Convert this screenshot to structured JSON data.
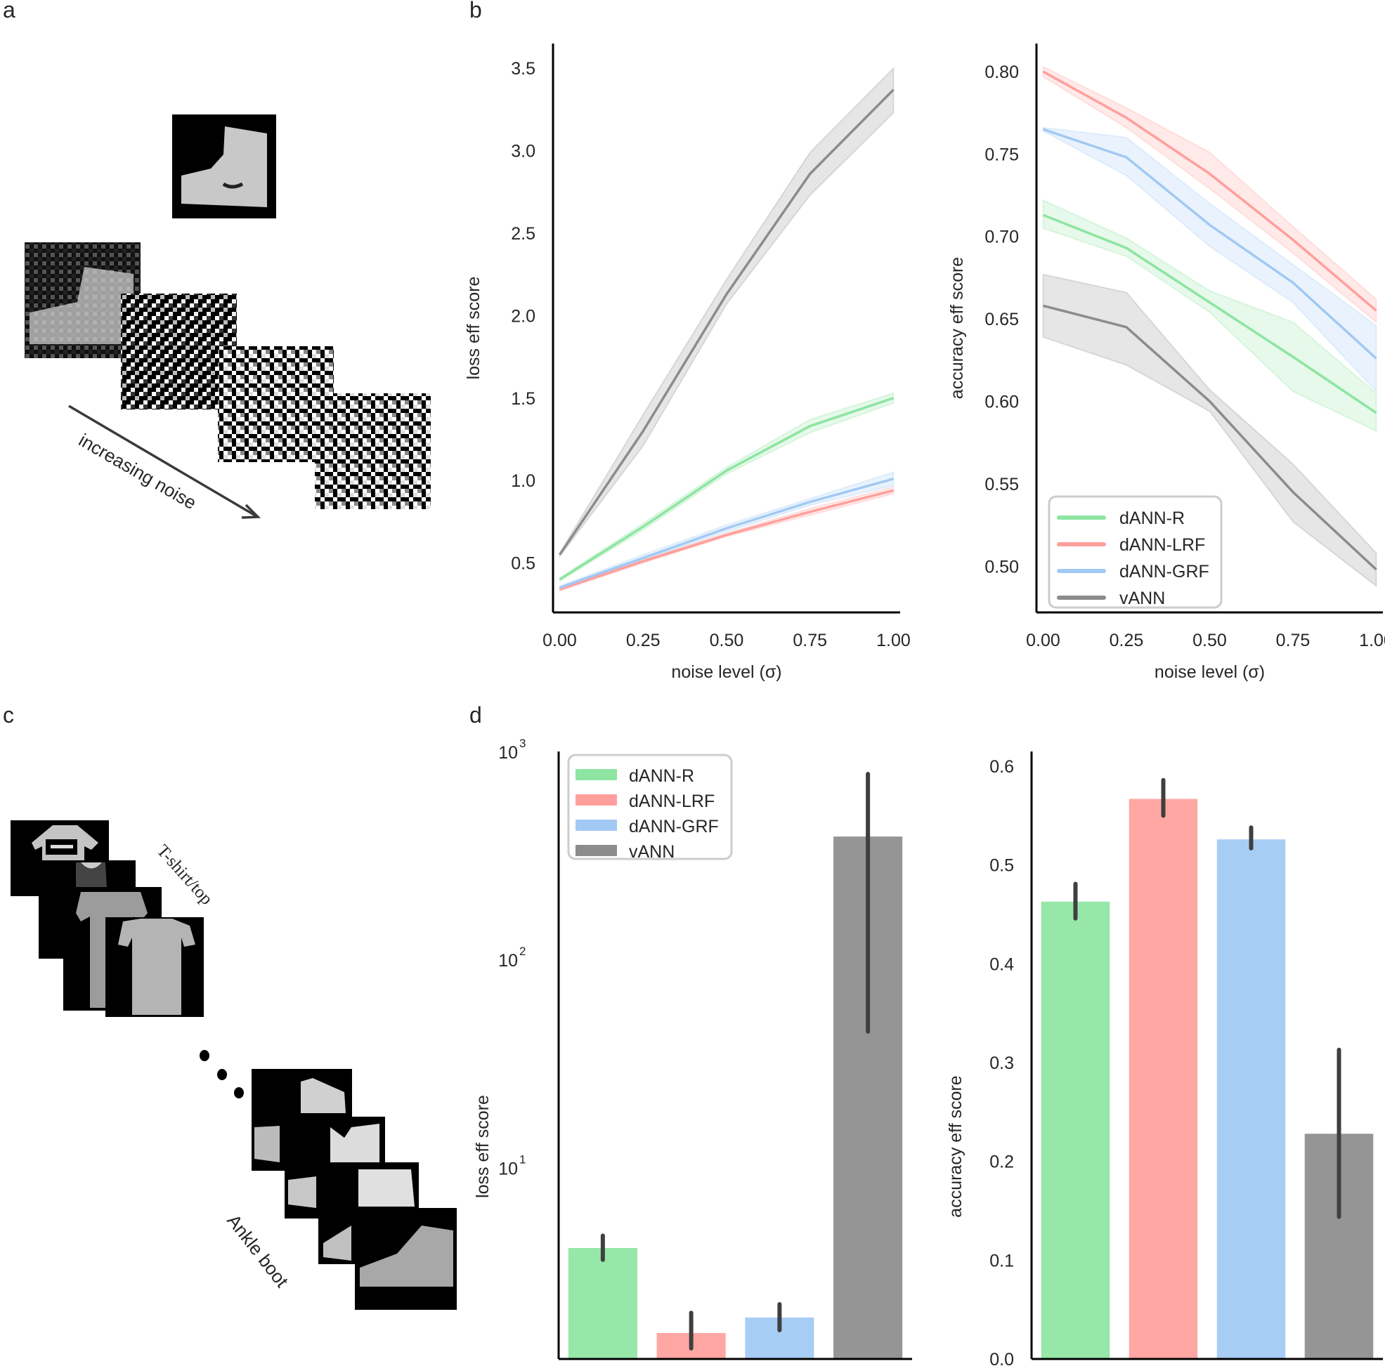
{
  "panels": {
    "a": {
      "letter": "a",
      "arrow_label": "increasing noise",
      "description": "Fashion-MNIST ankle boot image with increasing levels of additive noise"
    },
    "b": {
      "letter": "b"
    },
    "c": {
      "letter": "c",
      "first_class_label": "T-shirt/top",
      "last_class_label": "Ankle boot",
      "description": "Fashion-MNIST class examples from T-shirt/top to Ankle boot"
    },
    "d": {
      "letter": "d"
    }
  },
  "colors": {
    "dANN-R": "#8de5a1",
    "dANN-LRF": "#ff9f9b",
    "dANN-GRF": "#a1c9f4",
    "vANN": "#8c8c8c",
    "errorbar": "#3f3f3f",
    "axis": "#000000"
  },
  "legend": [
    "dANN-R",
    "dANN-LRF",
    "dANN-GRF",
    "vANN"
  ],
  "chart_data": [
    {
      "id": "loss-vs-noise",
      "type": "line",
      "title": "",
      "xlabel": "noise level (σ)",
      "ylabel": "loss eff score",
      "x": [
        0.0,
        0.25,
        0.5,
        0.75,
        1.0
      ],
      "xticks": [
        "0.00",
        "0.25",
        "0.50",
        "0.75",
        "1.00"
      ],
      "yticks": [
        "0.5",
        "1.0",
        "1.5",
        "2.0",
        "2.5",
        "3.0",
        "3.5"
      ],
      "ytick_values": [
        0.5,
        1.0,
        1.5,
        2.0,
        2.5,
        3.0,
        3.5
      ],
      "xlim": [
        -0.02,
        1.02
      ],
      "ylim": [
        0.2,
        3.65
      ],
      "grid": false,
      "legend": "none",
      "series": [
        {
          "name": "dANN-R",
          "values": [
            0.4,
            0.72,
            1.06,
            1.33,
            1.5
          ],
          "ci_low": [
            0.39,
            0.7,
            1.04,
            1.29,
            1.47
          ],
          "ci_high": [
            0.41,
            0.74,
            1.08,
            1.37,
            1.53
          ]
        },
        {
          "name": "dANN-LRF",
          "values": [
            0.34,
            0.51,
            0.67,
            0.81,
            0.94
          ],
          "ci_low": [
            0.33,
            0.5,
            0.66,
            0.79,
            0.92
          ],
          "ci_high": [
            0.35,
            0.52,
            0.68,
            0.83,
            0.96
          ]
        },
        {
          "name": "dANN-GRF",
          "values": [
            0.35,
            0.53,
            0.71,
            0.87,
            1.01
          ],
          "ci_low": [
            0.34,
            0.52,
            0.69,
            0.85,
            0.97
          ],
          "ci_high": [
            0.36,
            0.55,
            0.73,
            0.89,
            1.05
          ]
        },
        {
          "name": "vANN",
          "values": [
            0.55,
            1.3,
            2.13,
            2.86,
            3.37
          ],
          "ci_low": [
            0.54,
            1.21,
            2.07,
            2.73,
            3.23
          ],
          "ci_high": [
            0.56,
            1.4,
            2.22,
            2.99,
            3.5
          ]
        }
      ]
    },
    {
      "id": "accuracy-vs-noise",
      "type": "line",
      "title": "",
      "xlabel": "noise level (σ)",
      "ylabel": "accuracy eff score",
      "x": [
        0.0,
        0.25,
        0.5,
        0.75,
        1.0
      ],
      "xticks": [
        "0.00",
        "0.25",
        "0.50",
        "0.75",
        "1.00"
      ],
      "yticks": [
        "0.50",
        "0.55",
        "0.60",
        "0.65",
        "0.70",
        "0.75",
        "0.80"
      ],
      "ytick_values": [
        0.5,
        0.55,
        0.6,
        0.65,
        0.7,
        0.75,
        0.8
      ],
      "xlim": [
        -0.02,
        1.02
      ],
      "ylim": [
        0.472,
        0.817
      ],
      "grid": false,
      "legend": "bottom-left",
      "series": [
        {
          "name": "dANN-R",
          "values": [
            0.713,
            0.693,
            0.66,
            0.627,
            0.593
          ],
          "ci_low": [
            0.705,
            0.688,
            0.654,
            0.606,
            0.582
          ],
          "ci_high": [
            0.722,
            0.699,
            0.667,
            0.648,
            0.605
          ]
        },
        {
          "name": "dANN-LRF",
          "values": [
            0.8,
            0.772,
            0.738,
            0.698,
            0.655
          ],
          "ci_low": [
            0.797,
            0.766,
            0.729,
            0.69,
            0.648
          ],
          "ci_high": [
            0.803,
            0.778,
            0.751,
            0.706,
            0.662
          ]
        },
        {
          "name": "dANN-GRF",
          "values": [
            0.765,
            0.748,
            0.707,
            0.672,
            0.626
          ],
          "ci_low": [
            0.764,
            0.737,
            0.694,
            0.66,
            0.606
          ],
          "ci_high": [
            0.766,
            0.76,
            0.72,
            0.683,
            0.646
          ]
        },
        {
          "name": "vANN",
          "values": [
            0.658,
            0.645,
            0.6,
            0.545,
            0.498
          ],
          "ci_low": [
            0.639,
            0.622,
            0.594,
            0.527,
            0.488
          ],
          "ci_high": [
            0.677,
            0.666,
            0.607,
            0.562,
            0.508
          ]
        }
      ]
    },
    {
      "id": "loss-bar",
      "type": "bar",
      "title": "",
      "xlabel": "",
      "ylabel": "loss eff score",
      "yscale": "log",
      "categories": [
        "dANN-R",
        "dANN-LRF",
        "dANN-GRF",
        "vANN"
      ],
      "values": [
        4.1,
        1.6,
        1.9,
        390
      ],
      "err_low": [
        3.6,
        1.35,
        1.65,
        45
      ],
      "err_high": [
        4.7,
        2.0,
        2.2,
        780
      ],
      "yticks": [
        "10^1",
        "10^2",
        "10^3"
      ],
      "ytick_values": [
        10,
        100,
        1000
      ],
      "ylim": [
        1.2,
        1000
      ],
      "grid": false,
      "legend": "top-left"
    },
    {
      "id": "accuracy-bar",
      "type": "bar",
      "title": "",
      "xlabel": "",
      "ylabel": "accuracy eff score",
      "categories": [
        "dANN-R",
        "dANN-LRF",
        "dANN-GRF",
        "vANN"
      ],
      "values": [
        0.463,
        0.567,
        0.526,
        0.228
      ],
      "err_low": [
        0.446,
        0.55,
        0.517,
        0.144
      ],
      "err_high": [
        0.481,
        0.586,
        0.538,
        0.313
      ],
      "yticks": [
        "0.0",
        "0.1",
        "0.2",
        "0.3",
        "0.4",
        "0.5",
        "0.6"
      ],
      "ytick_values": [
        0.0,
        0.1,
        0.2,
        0.3,
        0.4,
        0.5,
        0.6
      ],
      "ylim": [
        0.0,
        0.615
      ],
      "grid": false,
      "legend": "none"
    }
  ]
}
